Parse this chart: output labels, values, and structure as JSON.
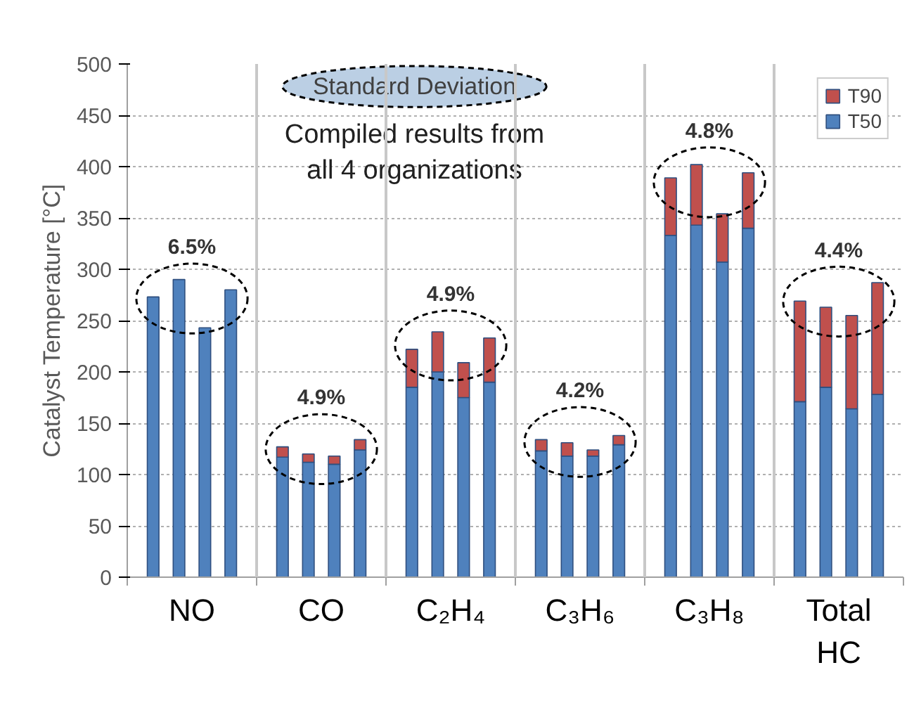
{
  "chart_data": {
    "type": "bar",
    "stacked": true,
    "ylabel": "Catalyst Temperature [°C]",
    "categories": [
      null,
      null,
      null,
      null,
      null,
      null,
      null,
      null,
      null,
      null,
      null,
      null,
      null,
      null,
      null,
      null,
      null,
      null,
      null,
      null,
      null,
      null,
      null,
      null
    ],
    "series": [
      {
        "name": "T50",
        "color": "#4f81bd",
        "values": [
          273,
          290,
          243,
          280,
          117,
          112,
          110,
          124,
          185,
          200,
          175,
          190,
          123,
          118,
          118,
          129,
          333,
          343,
          307,
          340,
          171,
          185,
          164,
          178
        ]
      },
      {
        "name": "T90",
        "color": "#c0504d",
        "values": [
          null,
          null,
          null,
          null,
          10,
          8,
          8,
          10,
          37,
          39,
          34,
          43,
          11,
          13,
          6,
          9,
          56,
          59,
          47,
          54,
          98,
          78,
          91,
          109
        ]
      }
    ],
    "ylim": [
      0,
      500
    ],
    "yticks": [
      0,
      50,
      100,
      150,
      200,
      250,
      300,
      350,
      400,
      450,
      500
    ],
    "grid": true,
    "legend": "top right",
    "annotations": [
      "Standard Deviation",
      "Compiled results from\nall 4 organizations",
      "6.5%",
      "4.9%",
      "4.9%",
      "4.2%",
      "4.8%",
      "4.4%",
      "NO",
      "CO",
      "C₂H₄",
      "C₃H₆",
      "C₃H₈",
      "Total\nHC"
    ]
  }
}
